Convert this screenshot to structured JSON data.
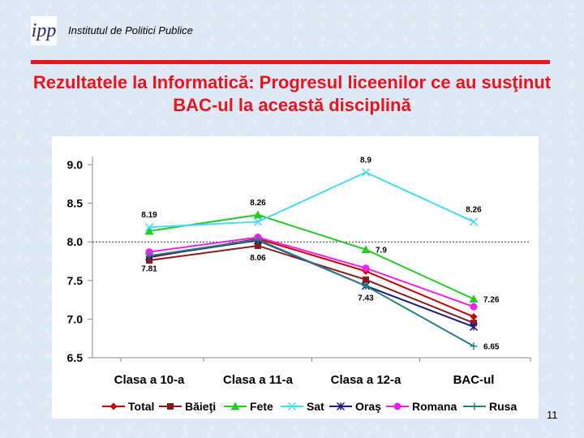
{
  "header": {
    "logo_text": "ipp",
    "institute": "Institutul de Politici Publice"
  },
  "slide": {
    "title": "Rezultatele la Informatică: Progresul liceenilor ce au susţinut BAC-ul la această disciplină",
    "page_number": "11"
  },
  "chart_data": {
    "type": "line",
    "categories": [
      "Clasa a 10-a",
      "Clasa a 11-a",
      "Clasa a 12-a",
      "BAC-ul"
    ],
    "ylim": [
      6.5,
      9.0
    ],
    "y_ticks": [
      "9.0",
      "8.5",
      "8.0",
      "7.5",
      "7.0",
      "6.5"
    ],
    "reference_line": 8.0,
    "series": [
      {
        "name": "Total",
        "color": "#cc0000",
        "marker": "diamond",
        "values": [
          7.8,
          8.04,
          7.62,
          7.03
        ]
      },
      {
        "name": "Băieţi",
        "color": "#8b1a1a",
        "marker": "square",
        "values": [
          7.76,
          7.95,
          7.51,
          6.95
        ]
      },
      {
        "name": "Fete",
        "color": "#22cc22",
        "marker": "triangle",
        "values": [
          8.14,
          8.35,
          7.9,
          7.26
        ]
      },
      {
        "name": "Sat",
        "color": "#44dcf0",
        "marker": "x",
        "values": [
          8.19,
          8.26,
          8.9,
          8.26
        ]
      },
      {
        "name": "Oraş",
        "color": "#1a1a80",
        "marker": "star",
        "values": [
          7.81,
          8.02,
          7.43,
          6.9
        ]
      },
      {
        "name": "Romana",
        "color": "#ee22ee",
        "marker": "circle",
        "values": [
          7.87,
          8.06,
          7.66,
          7.16
        ]
      },
      {
        "name": "Rusa",
        "color": "#2a8080",
        "marker": "plus",
        "values": [
          7.82,
          8.03,
          7.43,
          6.65
        ]
      }
    ],
    "data_labels": [
      {
        "text": "8.19",
        "x": 0,
        "y": 8.19,
        "pos": "above"
      },
      {
        "text": "7.81",
        "x": 0,
        "y": 7.81,
        "pos": "below"
      },
      {
        "text": "8.26",
        "x": 1,
        "y": 8.35,
        "pos": "above"
      },
      {
        "text": "8.06",
        "x": 1,
        "y": 7.95,
        "pos": "below"
      },
      {
        "text": "8.9",
        "x": 2,
        "y": 8.9,
        "pos": "above"
      },
      {
        "text": "7.9",
        "x": 2,
        "y": 7.9,
        "pos": "right"
      },
      {
        "text": "7.43",
        "x": 2,
        "y": 7.43,
        "pos": "below"
      },
      {
        "text": "8.26",
        "x": 3,
        "y": 8.26,
        "pos": "above"
      },
      {
        "text": "7.26",
        "x": 3,
        "y": 7.26,
        "pos": "right"
      },
      {
        "text": "6.65",
        "x": 3,
        "y": 6.65,
        "pos": "right"
      }
    ],
    "legend_position": "bottom",
    "grid": false
  }
}
